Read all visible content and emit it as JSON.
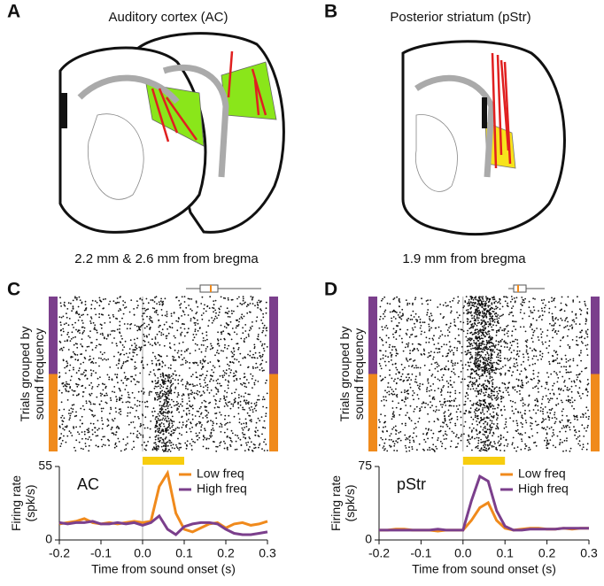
{
  "panel_labels": [
    "A",
    "B",
    "C",
    "D"
  ],
  "brain_panels": [
    {
      "title": "Auditory cortex (AC)",
      "caption": "2.2 mm & 2.6 mm from bregma"
    },
    {
      "title": "Posterior striatum (pStr)",
      "caption": "1.9 mm from bregma"
    }
  ],
  "raster_ylabel": [
    "Trials grouped by",
    "sound frequency"
  ],
  "chart_data": [
    {
      "type": "line",
      "annotation": "AC",
      "ylabel": [
        "Firing rate",
        "(spk/s)"
      ],
      "xlabel": "Time from sound onset (s)",
      "x": [
        -0.2,
        -0.18,
        -0.16,
        -0.14,
        -0.12,
        -0.1,
        -0.08,
        -0.06,
        -0.04,
        -0.02,
        0,
        0.02,
        0.04,
        0.06,
        0.08,
        0.1,
        0.12,
        0.14,
        0.16,
        0.18,
        0.2,
        0.22,
        0.24,
        0.26,
        0.28,
        0.3
      ],
      "xlim": [
        -0.2,
        0.3
      ],
      "xticks": [
        -0.2,
        -0.1,
        {
          "value": 0,
          "label": "0.0"
        },
        0.1,
        0.2,
        0.3
      ],
      "ylim": [
        0,
        55
      ],
      "yticks": [
        0,
        55
      ],
      "stimulus": [
        0,
        0.1
      ],
      "stimulus_color": "#f7cd0f",
      "series": [
        {
          "name": "Low freq",
          "color": "#f08a1c",
          "values": [
            12,
            13,
            14,
            16,
            13,
            12,
            13,
            12,
            13,
            14,
            13,
            14,
            40,
            50,
            20,
            8,
            6,
            9,
            12,
            13,
            9,
            12,
            13,
            11,
            12,
            14
          ]
        },
        {
          "name": "High freq",
          "color": "#7b3f8c",
          "values": [
            13,
            12,
            13,
            13,
            14,
            12,
            12,
            13,
            12,
            13,
            11,
            13,
            18,
            8,
            4,
            10,
            12,
            13,
            13,
            12,
            8,
            5,
            4,
            4,
            5,
            6
          ]
        }
      ]
    },
    {
      "type": "line",
      "annotation": "pStr",
      "ylabel": [
        "Firing rate",
        "(spk/s)"
      ],
      "xlabel": "Time from sound onset (s)",
      "x": [
        -0.2,
        -0.18,
        -0.16,
        -0.14,
        -0.12,
        -0.1,
        -0.08,
        -0.06,
        -0.04,
        -0.02,
        0,
        0.02,
        0.04,
        0.06,
        0.08,
        0.1,
        0.12,
        0.14,
        0.16,
        0.18,
        0.2,
        0.22,
        0.24,
        0.26,
        0.28,
        0.3
      ],
      "xlim": [
        -0.2,
        0.3
      ],
      "xticks": [
        -0.2,
        -0.1,
        {
          "value": 0,
          "label": "0.0"
        },
        0.1,
        0.2,
        0.3
      ],
      "ylim": [
        0,
        75
      ],
      "yticks": [
        0,
        75
      ],
      "stimulus": [
        0,
        0.1
      ],
      "stimulus_color": "#f7cd0f",
      "series": [
        {
          "name": "Low freq",
          "color": "#f08a1c",
          "values": [
            10,
            10,
            11,
            11,
            10,
            10,
            10,
            9,
            10,
            10,
            10,
            20,
            33,
            38,
            20,
            12,
            10,
            11,
            12,
            12,
            11,
            11,
            12,
            11,
            12,
            12
          ]
        },
        {
          "name": "High freq",
          "color": "#7b3f8c",
          "values": [
            10,
            10,
            10,
            10,
            10,
            10,
            10,
            11,
            10,
            10,
            10,
            40,
            65,
            60,
            30,
            14,
            10,
            10,
            11,
            11,
            11,
            11,
            12,
            12,
            12,
            12
          ]
        }
      ]
    }
  ]
}
